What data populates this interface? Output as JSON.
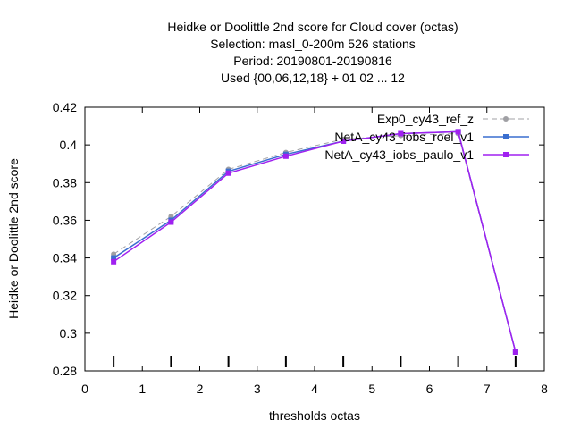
{
  "chart_data": {
    "type": "line",
    "title_lines": [
      "Heidke or Doolittle 2nd score  for Cloud cover (octas)",
      "Selection: masl_0-200m    526 stations",
      "Period: 20190801-20190816",
      "Used {00,06,12,18} + 01 02 ... 12"
    ],
    "xlabel": "thresholds octas",
    "ylabel": "Heidke or Doolittle 2nd score",
    "xlim": [
      0,
      8
    ],
    "ylim": [
      0.28,
      0.42
    ],
    "xticks": [
      "0",
      "1",
      "2",
      "3",
      "4",
      "5",
      "6",
      "7",
      "8"
    ],
    "yticks": [
      "0.28",
      "0.3",
      "0.32",
      "0.34",
      "0.36",
      "0.38",
      "0.4",
      "0.42"
    ],
    "grid": false,
    "legend_position": "top-right",
    "count_markers_x": [
      0.5,
      1.5,
      2.5,
      3.5,
      4.5,
      5.5,
      6.5,
      7.5
    ],
    "series": [
      {
        "name": "Exp0_cy43_ref_z",
        "color": "#a0a0a4",
        "dashed": true,
        "marker": "circle",
        "x": [
          0.5,
          1.5,
          2.5,
          3.5,
          4.5,
          5.5,
          6.5,
          7.5
        ],
        "values": [
          0.342,
          0.362,
          0.387,
          0.396,
          0.403,
          0.405,
          0.406,
          0.29
        ]
      },
      {
        "name": "NetA_cy43_iobs_roel_v1",
        "color": "#3a6ecf",
        "dashed": false,
        "marker": "square",
        "x": [
          0.5,
          1.5,
          2.5,
          3.5,
          4.5,
          5.5,
          6.5,
          7.5
        ],
        "values": [
          0.34,
          0.36,
          0.386,
          0.395,
          0.402,
          0.406,
          0.407,
          0.29
        ]
      },
      {
        "name": "NetA_cy43_iobs_paulo_v1",
        "color": "#a020f0",
        "dashed": false,
        "marker": "square",
        "x": [
          0.5,
          1.5,
          2.5,
          3.5,
          4.5,
          5.5,
          6.5,
          7.5
        ],
        "values": [
          0.338,
          0.359,
          0.385,
          0.394,
          0.402,
          0.406,
          0.407,
          0.29
        ]
      }
    ]
  }
}
